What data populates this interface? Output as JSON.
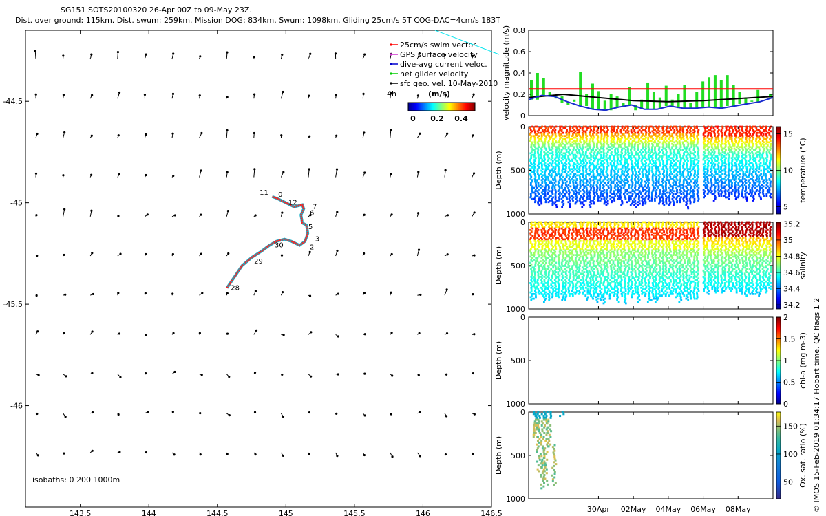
{
  "title": {
    "line1": "SG151 SOTS20100320 26-Apr 00Z to 09-May 23Z.",
    "line2": "Dist. over ground: 115km. Dist. swum: 259km. Mission DOG: 834km. Swum: 1098km. Gliding 25cm/s 5T COG-DAC=4cm/s 183T"
  },
  "credit": "© IMOS 15-Feb-2019 01:34:17 Hobart time. QC flags 1  2",
  "colors": {
    "swim": "#ff0000",
    "gps": "#cc33cc",
    "dac": "#0000cc",
    "net": "#00cc00",
    "sfc": "#000000",
    "track_red": "#ff2020",
    "track_cyan": "#1ab0c8"
  },
  "chart_data": [
    {
      "id": "map",
      "type": "scatter",
      "title": "",
      "xlabel": "",
      "ylabel": "",
      "xlim": [
        143.1,
        146.5
      ],
      "ylim": [
        -46.5,
        -44.15
      ],
      "xticks": [
        143.5,
        144,
        144.5,
        145,
        145.5,
        146,
        146.5
      ],
      "xtick_labels": [
        "143.5",
        "144",
        "144.5",
        "145",
        "145.5",
        "146",
        "146.5"
      ],
      "yticks": [
        -44.5,
        -45,
        -45.5,
        -46
      ],
      "ytick_labels": [
        "-44.5",
        "-45",
        "-45.5",
        "-46"
      ],
      "legend": [
        {
          "label": "25cm/s swim vector",
          "color": "#ff0000"
        },
        {
          "label": "GPS surface velocity",
          "color": "#cc33cc"
        },
        {
          "label": "dive-avg current veloc.",
          "color": "#0000cc"
        },
        {
          "label": "net glider velocity",
          "color": "#00cc00"
        },
        {
          "label": "sfc geo. vel. 10-May-2010",
          "color": "#000000"
        }
      ],
      "legend_position": "top-right",
      "colorbar": {
        "title": "(m/s)",
        "ticks": [
          "0",
          "0.2",
          "0.4"
        ],
        "range": [
          0,
          0.5
        ],
        "extra_label": "4h"
      },
      "isobaths_label": "isobaths: 0   200  1000m",
      "track": {
        "lon": [
          144.57,
          144.62,
          144.68,
          144.75,
          144.82,
          144.88,
          144.93,
          144.99,
          145.04,
          145.1,
          145.14,
          145.16,
          145.15,
          145.12,
          145.11,
          145.13,
          145.12,
          145.06,
          145.0,
          144.94,
          144.9
        ],
        "lat": [
          -45.42,
          -45.37,
          -45.31,
          -45.27,
          -45.24,
          -45.21,
          -45.19,
          -45.18,
          -45.19,
          -45.21,
          -45.19,
          -45.15,
          -45.11,
          -45.1,
          -45.06,
          -45.03,
          -45.01,
          -45.02,
          -45.0,
          -44.98,
          -44.97
        ]
      },
      "track_labels": [
        {
          "text": "11",
          "lon": 144.84,
          "lat": -44.96
        },
        {
          "text": "0",
          "lon": 144.96,
          "lat": -44.97
        },
        {
          "text": "12",
          "lon": 145.05,
          "lat": -45.01
        },
        {
          "text": "7",
          "lon": 145.21,
          "lat": -45.03
        },
        {
          "text": "6",
          "lon": 145.19,
          "lat": -45.06
        },
        {
          "text": "5",
          "lon": 145.18,
          "lat": -45.13
        },
        {
          "text": "3",
          "lon": 145.23,
          "lat": -45.19
        },
        {
          "text": "2",
          "lon": 145.19,
          "lat": -45.23
        },
        {
          "text": "30",
          "lon": 144.95,
          "lat": -45.22
        },
        {
          "text": "29",
          "lon": 144.8,
          "lat": -45.3
        },
        {
          "text": "28",
          "lon": 144.63,
          "lat": -45.43
        }
      ]
    },
    {
      "id": "velocity",
      "type": "line",
      "title": "",
      "xlabel": "",
      "ylabel": "velocity magnitude (m/s)",
      "ylim": [
        0,
        0.8
      ],
      "yticks": [
        0,
        0.2,
        0.4,
        0.6,
        0.8
      ],
      "ytick_labels": [
        "0",
        "0.2",
        "0.4",
        "0.6",
        "0.8"
      ],
      "series": [
        {
          "name": "25cm/s swim vector",
          "values": [
            0.25,
            0.25
          ]
        },
        {
          "name": "sfc geo. vel.",
          "values": [
            0.17,
            0.2,
            0.17,
            0.14,
            0.13,
            0.14,
            0.16,
            0.18
          ]
        },
        {
          "name": "dive-avg current veloc.",
          "values": [
            0.15,
            0.19,
            0.18,
            0.13,
            0.09,
            0.06,
            0.05,
            0.08,
            0.1,
            0.06,
            0.06,
            0.09,
            0.07,
            0.07,
            0.08,
            0.07,
            0.09,
            0.11,
            0.13,
            0.17
          ]
        },
        {
          "name": "net glider velocity",
          "values": [
            0.33,
            0.4,
            0.35,
            0.22,
            0.16,
            0.12,
            0.1,
            0.15,
            0.41,
            0.2,
            0.3,
            0.23,
            0.14,
            0.2,
            0.18,
            0.12,
            0.27,
            0.05,
            0.15,
            0.31,
            0.22,
            0.17,
            0.28,
            0.15,
            0.2,
            0.29,
            0.12,
            0.22,
            0.32,
            0.36,
            0.38,
            0.33,
            0.38,
            0.29,
            0.22,
            0.17,
            0.14,
            0.24,
            0.18,
            0.2
          ]
        }
      ]
    },
    {
      "id": "temperature",
      "type": "heatmap",
      "ylabel": "Depth (m)",
      "ylim": [
        1000,
        0
      ],
      "yticks": [
        0,
        500,
        1000
      ],
      "ytick_labels": [
        "0",
        "500",
        "1000"
      ],
      "colorbar_label": "temperature (°C)",
      "colorbar_ticks": [
        "15",
        "10",
        "5"
      ],
      "colorbar_range": [
        4,
        16
      ]
    },
    {
      "id": "salinity",
      "type": "heatmap",
      "ylabel": "Depth (m)",
      "ylim": [
        1000,
        0
      ],
      "yticks": [
        0,
        500,
        1000
      ],
      "ytick_labels": [
        "0",
        "500",
        "1000"
      ],
      "colorbar_label": "salinity",
      "colorbar_ticks": [
        "35.2",
        "35",
        "34.8",
        "34.6",
        "34.4",
        "34.2"
      ],
      "colorbar_range": [
        34.15,
        35.22
      ]
    },
    {
      "id": "chla",
      "type": "heatmap",
      "ylabel": "Depth (m)",
      "ylim": [
        1000,
        0
      ],
      "yticks": [
        0,
        500,
        1000
      ],
      "ytick_labels": [
        "0",
        "500",
        "1000"
      ],
      "colorbar_label": "chl-a (mg m-3)",
      "colorbar_ticks": [
        "2",
        "1.5",
        "1",
        "0.5",
        "0"
      ],
      "colorbar_range": [
        0,
        2
      ]
    },
    {
      "id": "oxygen",
      "type": "scatter",
      "ylabel": "Depth (m)",
      "ylim": [
        1000,
        0
      ],
      "yticks": [
        0,
        500,
        1000
      ],
      "ytick_labels": [
        "0",
        "500",
        "1000"
      ],
      "xtick_labels": [
        "30Apr",
        "02May",
        "04May",
        "06May",
        "08May"
      ],
      "colorbar_label": "Ox. sat. ratio (%)",
      "colorbar_ticks": [
        "150",
        "100",
        "50"
      ],
      "colorbar_range": [
        20,
        175
      ]
    }
  ]
}
